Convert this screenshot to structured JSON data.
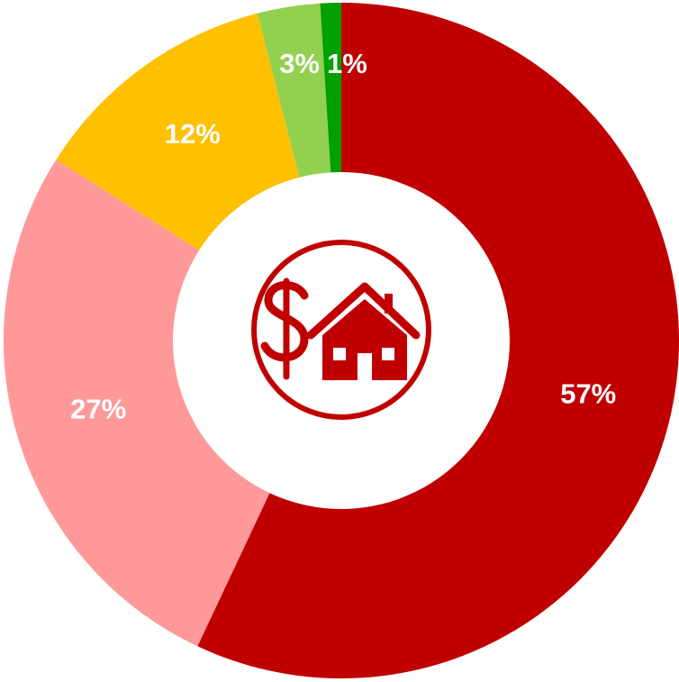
{
  "chart_data": {
    "type": "donut",
    "values": [
      57,
      27,
      12,
      3,
      1
    ],
    "value_labels": [
      "57%",
      "27%",
      "12%",
      "3%",
      "1%"
    ],
    "colors": [
      "#c00000",
      "#ff9999",
      "#ffc000",
      "#92d050",
      "#00a000"
    ]
  }
}
